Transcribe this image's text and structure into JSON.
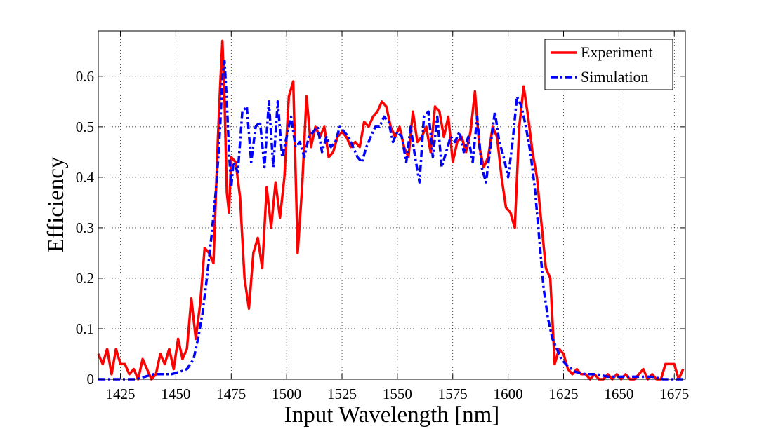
{
  "chart_data": {
    "type": "line",
    "title": "",
    "xlabel": "Input Wavelength [nm]",
    "ylabel": "Efficiency",
    "xlim": [
      1415,
      1680
    ],
    "ylim": [
      0,
      0.69
    ],
    "xticks": [
      1425,
      1450,
      1475,
      1500,
      1525,
      1550,
      1575,
      1600,
      1625,
      1650,
      1675
    ],
    "xtick_labels": [
      "1425",
      "1450",
      "1475",
      "1500",
      "1525",
      "1550",
      "1575",
      "1600",
      "1625",
      "1650",
      "1675"
    ],
    "yticks": [
      0,
      0.1,
      0.2,
      0.3,
      0.4,
      0.5,
      0.6
    ],
    "ytick_labels": [
      "0",
      "0.1",
      "0.2",
      "0.3",
      "0.4",
      "0.5",
      "0.6"
    ],
    "grid": true,
    "legend_position": "top-right",
    "series": [
      {
        "name": "Experiment",
        "color": "#ff0000",
        "style": "solid",
        "x": [
          1415,
          1417,
          1419,
          1421,
          1423,
          1425,
          1427,
          1429,
          1431,
          1433,
          1435,
          1437,
          1439,
          1441,
          1443,
          1445,
          1447,
          1449,
          1451,
          1453,
          1455,
          1457,
          1459,
          1461,
          1463,
          1465,
          1467,
          1469,
          1470,
          1471,
          1472,
          1473,
          1474,
          1475,
          1477,
          1479,
          1481,
          1483,
          1485,
          1487,
          1489,
          1491,
          1493,
          1495,
          1497,
          1499,
          1501,
          1503,
          1505,
          1507,
          1509,
          1511,
          1513,
          1515,
          1517,
          1519,
          1521,
          1523,
          1525,
          1527,
          1529,
          1531,
          1533,
          1535,
          1537,
          1539,
          1541,
          1543,
          1545,
          1547,
          1549,
          1551,
          1553,
          1555,
          1557,
          1559,
          1561,
          1563,
          1565,
          1567,
          1569,
          1571,
          1573,
          1575,
          1577,
          1579,
          1581,
          1583,
          1585,
          1587,
          1589,
          1591,
          1593,
          1595,
          1597,
          1599,
          1601,
          1603,
          1605,
          1607,
          1609,
          1611,
          1613,
          1615,
          1617,
          1619,
          1621,
          1623,
          1625,
          1627,
          1629,
          1631,
          1633,
          1635,
          1637,
          1639,
          1641,
          1643,
          1645,
          1647,
          1649,
          1651,
          1653,
          1655,
          1657,
          1659,
          1661,
          1663,
          1665,
          1667,
          1669,
          1671,
          1673,
          1675,
          1677,
          1679
        ],
        "values": [
          0.05,
          0.03,
          0.06,
          0.01,
          0.06,
          0.03,
          0.03,
          0.01,
          0.02,
          0.0,
          0.04,
          0.02,
          0.0,
          0.01,
          0.05,
          0.03,
          0.06,
          0.02,
          0.08,
          0.04,
          0.06,
          0.16,
          0.08,
          0.15,
          0.26,
          0.25,
          0.23,
          0.48,
          0.58,
          0.67,
          0.55,
          0.37,
          0.33,
          0.44,
          0.43,
          0.36,
          0.2,
          0.14,
          0.25,
          0.28,
          0.22,
          0.38,
          0.3,
          0.39,
          0.32,
          0.4,
          0.56,
          0.59,
          0.25,
          0.38,
          0.56,
          0.46,
          0.5,
          0.48,
          0.5,
          0.44,
          0.45,
          0.48,
          0.49,
          0.48,
          0.46,
          0.47,
          0.46,
          0.51,
          0.5,
          0.52,
          0.53,
          0.55,
          0.54,
          0.5,
          0.48,
          0.5,
          0.46,
          0.44,
          0.53,
          0.47,
          0.48,
          0.5,
          0.45,
          0.54,
          0.53,
          0.48,
          0.52,
          0.43,
          0.47,
          0.48,
          0.45,
          0.49,
          0.57,
          0.46,
          0.42,
          0.44,
          0.5,
          0.48,
          0.4,
          0.34,
          0.33,
          0.3,
          0.5,
          0.58,
          0.52,
          0.45,
          0.4,
          0.31,
          0.22,
          0.2,
          0.03,
          0.06,
          0.05,
          0.02,
          0.01,
          0.02,
          0.01,
          0.01,
          0.0,
          0.01,
          0.0,
          0.0,
          0.01,
          0.0,
          0.01,
          0.0,
          0.01,
          0.0,
          0.0,
          0.01,
          0.02,
          0.0,
          0.01,
          0.0,
          0.0,
          0.03,
          0.03,
          0.03,
          0.0,
          0.02
        ],
        "label": "Experiment"
      },
      {
        "name": "Simulation",
        "color": "#0000ff",
        "style": "dashdot",
        "x": [
          1415,
          1425,
          1432,
          1436,
          1440,
          1444,
          1448,
          1452,
          1455,
          1458,
          1460,
          1462,
          1464,
          1466,
          1468,
          1469,
          1470,
          1471,
          1472,
          1473,
          1474,
          1475,
          1476,
          1478,
          1480,
          1482,
          1484,
          1486,
          1488,
          1490,
          1492,
          1494,
          1496,
          1498,
          1500,
          1502,
          1504,
          1506,
          1508,
          1510,
          1512,
          1514,
          1516,
          1518,
          1520,
          1522,
          1524,
          1526,
          1528,
          1530,
          1532,
          1534,
          1536,
          1538,
          1540,
          1542,
          1544,
          1546,
          1548,
          1550,
          1552,
          1554,
          1556,
          1558,
          1560,
          1562,
          1564,
          1566,
          1568,
          1570,
          1572,
          1574,
          1576,
          1578,
          1580,
          1582,
          1584,
          1586,
          1588,
          1590,
          1592,
          1594,
          1596,
          1598,
          1600,
          1602,
          1604,
          1606,
          1608,
          1610,
          1612,
          1614,
          1616,
          1618,
          1620,
          1622,
          1624,
          1626,
          1630,
          1635,
          1640,
          1645,
          1650,
          1655,
          1660,
          1665,
          1670,
          1675,
          1680
        ],
        "values": [
          0.0,
          0.0,
          0.0,
          0.005,
          0.01,
          0.01,
          0.01,
          0.015,
          0.02,
          0.04,
          0.08,
          0.13,
          0.2,
          0.28,
          0.37,
          0.43,
          0.5,
          0.6,
          0.63,
          0.55,
          0.45,
          0.38,
          0.43,
          0.41,
          0.53,
          0.54,
          0.43,
          0.5,
          0.51,
          0.42,
          0.55,
          0.42,
          0.55,
          0.44,
          0.48,
          0.52,
          0.46,
          0.47,
          0.44,
          0.48,
          0.49,
          0.5,
          0.45,
          0.48,
          0.46,
          0.47,
          0.5,
          0.49,
          0.48,
          0.46,
          0.44,
          0.43,
          0.46,
          0.48,
          0.5,
          0.5,
          0.52,
          0.51,
          0.47,
          0.49,
          0.48,
          0.43,
          0.5,
          0.44,
          0.39,
          0.52,
          0.53,
          0.44,
          0.52,
          0.42,
          0.45,
          0.48,
          0.47,
          0.49,
          0.45,
          0.48,
          0.43,
          0.52,
          0.42,
          0.39,
          0.46,
          0.53,
          0.47,
          0.44,
          0.4,
          0.47,
          0.56,
          0.54,
          0.5,
          0.45,
          0.38,
          0.28,
          0.18,
          0.12,
          0.08,
          0.06,
          0.04,
          0.03,
          0.015,
          0.01,
          0.01,
          0.005,
          0.005,
          0.005,
          0.005,
          0.005,
          0.0,
          0.0,
          0.0
        ],
        "label": "Simulation"
      }
    ]
  }
}
